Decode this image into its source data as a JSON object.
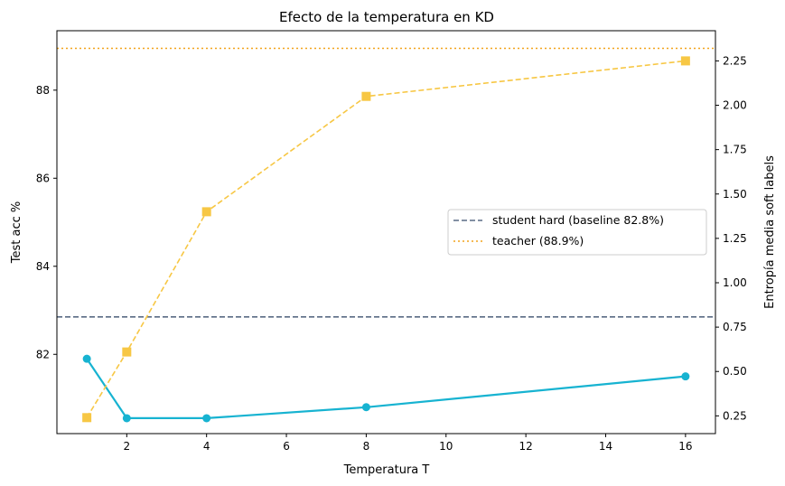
{
  "chart_data": {
    "type": "line",
    "title": "Efecto de la temperatura en KD",
    "xlabel": "Temperatura T",
    "ylabel": "Test acc %",
    "y2label": "Entropía media soft labels",
    "xlim": [
      0.25,
      16.75
    ],
    "ylim": [
      80.2,
      89.35
    ],
    "y2lim": [
      0.15,
      2.42
    ],
    "xticks": [
      2,
      4,
      6,
      8,
      10,
      12,
      14,
      16
    ],
    "yticks": [
      82,
      84,
      86,
      88
    ],
    "y2ticks": [
      "0.25",
      "0.50",
      "0.75",
      "1.00",
      "1.25",
      "1.50",
      "1.75",
      "2.00",
      "2.25"
    ],
    "grid": false,
    "legend_position": "center-right",
    "series": [
      {
        "axis": "left",
        "style": "solid",
        "marker": "circle",
        "color": "#17b3d1",
        "x": [
          1,
          2,
          4,
          8,
          16
        ],
        "values": [
          81.9,
          80.55,
          80.55,
          80.8,
          81.5
        ]
      },
      {
        "axis": "right",
        "style": "dashed",
        "marker": "square",
        "color": "#f7c744",
        "x": [
          1,
          2,
          4,
          8,
          16
        ],
        "values": [
          0.24,
          0.61,
          1.4,
          2.05,
          2.25
        ]
      }
    ],
    "reference_lines": [
      {
        "name": "student hard (baseline 82.8%)",
        "axis": "left",
        "value": 82.85,
        "style": "dashed",
        "color": "#5a6b85"
      },
      {
        "name": "teacher (88.9%)",
        "axis": "left",
        "value": 88.95,
        "style": "dotted",
        "color": "#f2a31b"
      }
    ],
    "y2label_color": "#c0621a"
  }
}
